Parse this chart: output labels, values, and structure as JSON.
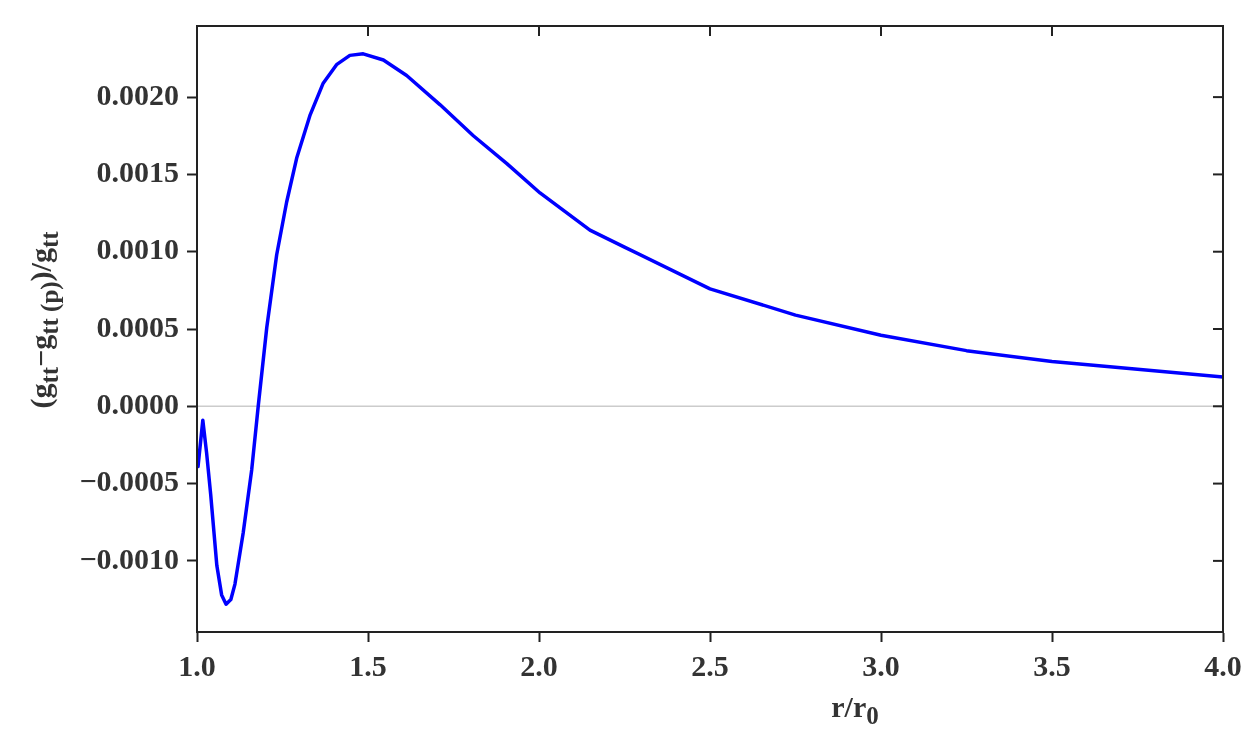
{
  "chart_data": {
    "type": "line",
    "xlabel": "r/r$_{0}$",
    "ylabel": "(g$_{tt}$−g$_{tt (p)}$)/g$_{tt}$",
    "xlim": [
      1.0,
      4.0
    ],
    "ylim": [
      -0.00146,
      0.00246
    ],
    "xticks": [
      {
        "value": 1.0,
        "label": "1.0"
      },
      {
        "value": 1.5,
        "label": "1.5"
      },
      {
        "value": 2.0,
        "label": "2.0"
      },
      {
        "value": 2.5,
        "label": "2.5"
      },
      {
        "value": 3.0,
        "label": "3.0"
      },
      {
        "value": 3.5,
        "label": "3.5"
      },
      {
        "value": 4.0,
        "label": "4.0"
      }
    ],
    "yticks": [
      {
        "value": -0.001,
        "label": "−0.0010"
      },
      {
        "value": -0.0005,
        "label": "−0.0005"
      },
      {
        "value": 0,
        "label": "0.0000"
      },
      {
        "value": 0.0005,
        "label": "0.0005"
      },
      {
        "value": 0.001,
        "label": "0.0010"
      },
      {
        "value": 0.0015,
        "label": "0.0015"
      },
      {
        "value": 0.002,
        "label": "0.0020"
      }
    ],
    "grid": false,
    "legend": false,
    "marker": "none",
    "line_style": "solid",
    "ref_lines": [
      {
        "axis": "y",
        "value": 0,
        "color": "#cccccc"
      }
    ],
    "series": [
      {
        "color": "#0000ff",
        "x": [
          1.003,
          1.017,
          1.028,
          1.04,
          1.058,
          1.072,
          1.085,
          1.099,
          1.111,
          1.135,
          1.16,
          1.179,
          1.204,
          1.233,
          1.262,
          1.292,
          1.33,
          1.369,
          1.408,
          1.447,
          1.486,
          1.545,
          1.613,
          1.711,
          1.808,
          1.906,
          2.003,
          2.149,
          2.25,
          2.5,
          2.75,
          3.0,
          3.25,
          3.5,
          3.75,
          4.0
        ],
        "values": [
          -0.00039,
          -9e-05,
          -0.0003,
          -0.00057,
          -0.00103,
          -0.00122,
          -0.00128,
          -0.00125,
          -0.00115,
          -0.00082,
          -0.00041,
          0.0,
          0.00051,
          0.00098,
          0.00132,
          0.00161,
          0.00188,
          0.00209,
          0.00221,
          0.00227,
          0.00228,
          0.00224,
          0.00214,
          0.00195,
          0.00175,
          0.00157,
          0.00138,
          0.00114,
          0.00103,
          0.00076,
          0.00059,
          0.00046,
          0.00036,
          0.00029,
          0.00024,
          0.00019
        ]
      }
    ]
  }
}
